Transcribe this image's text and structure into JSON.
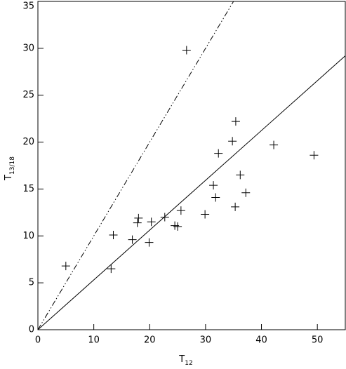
{
  "chart_data": {
    "type": "scatter",
    "xlabel": "T",
    "xlabel_sub": "12",
    "ylabel": "T",
    "ylabel_sub": "13/18",
    "xlim": [
      0,
      55
    ],
    "ylim": [
      0,
      35
    ],
    "xticks": [
      0,
      10,
      20,
      30,
      40,
      50
    ],
    "yticks": [
      0,
      5,
      10,
      15,
      20,
      25,
      30,
      35
    ],
    "color": "#000000",
    "series": [
      {
        "marker": "plus",
        "line": "none",
        "x": [
          5.0,
          13.1,
          13.5,
          16.9,
          17.8,
          18.0,
          19.9,
          20.3,
          22.7,
          24.5,
          25.0,
          25.6,
          26.6,
          29.9,
          31.4,
          31.8,
          32.3,
          34.8,
          35.4,
          35.3,
          36.2,
          37.2,
          42.2,
          49.4
        ],
        "values": [
          6.8,
          6.5,
          10.1,
          9.6,
          11.4,
          11.9,
          9.3,
          11.5,
          12.0,
          11.1,
          11.0,
          12.7,
          29.8,
          12.3,
          15.4,
          14.1,
          18.8,
          20.1,
          22.2,
          13.1,
          16.5,
          14.6,
          19.7,
          18.6
        ]
      },
      {
        "marker": "none",
        "line": "solid",
        "x": [
          0,
          55
        ],
        "values": [
          0,
          29.2
        ]
      },
      {
        "marker": "none",
        "line": "dash-dot-dot",
        "x": [
          0,
          35
        ],
        "values": [
          0,
          35
        ]
      }
    ]
  }
}
